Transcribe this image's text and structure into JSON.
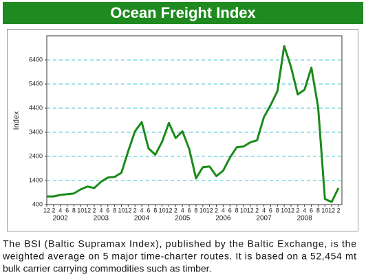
{
  "chart_data": {
    "type": "line",
    "title": "Ocean Freight Index",
    "y_label": "Index",
    "categories": [
      "12",
      "2",
      "4",
      "6",
      "8",
      "10",
      "12",
      "2",
      "4",
      "6",
      "8",
      "10",
      "12",
      "2",
      "4",
      "6",
      "8",
      "10",
      "12",
      "2",
      "4",
      "6",
      "8",
      "10",
      "12",
      "2",
      "4",
      "6",
      "8",
      "10",
      "12",
      "2",
      "4",
      "6",
      "8",
      "10",
      "12",
      "2",
      "4",
      "6",
      "8",
      "10",
      "12",
      "2"
    ],
    "year_labels": [
      "2002",
      "2003",
      "2004",
      "2005",
      "2006",
      "2007",
      "2008"
    ],
    "values": [
      740,
      740,
      800,
      830,
      860,
      1030,
      1150,
      1090,
      1350,
      1520,
      1550,
      1720,
      2610,
      3440,
      3820,
      2730,
      2470,
      3010,
      3790,
      3160,
      3440,
      2700,
      1490,
      1950,
      1980,
      1580,
      1810,
      2350,
      2780,
      2810,
      2980,
      3070,
      4020,
      4530,
      5110,
      6980,
      6110,
      4970,
      5170,
      6080,
      4450,
      630,
      510,
      1090
    ],
    "color": "#1a8a1a",
    "ylim": [
      400,
      7400
    ],
    "yticks": [
      400,
      1400,
      2400,
      3400,
      4400,
      5400,
      6400
    ],
    "grid": true
  },
  "caption": [
    "The BSI (Baltic Supramax Index), published by the Baltic Exchange, is the",
    "weighted average on 5 major time-charter routes. It is based on a 52,454 mt",
    "bulk carrier carrying commodities such as timber."
  ]
}
